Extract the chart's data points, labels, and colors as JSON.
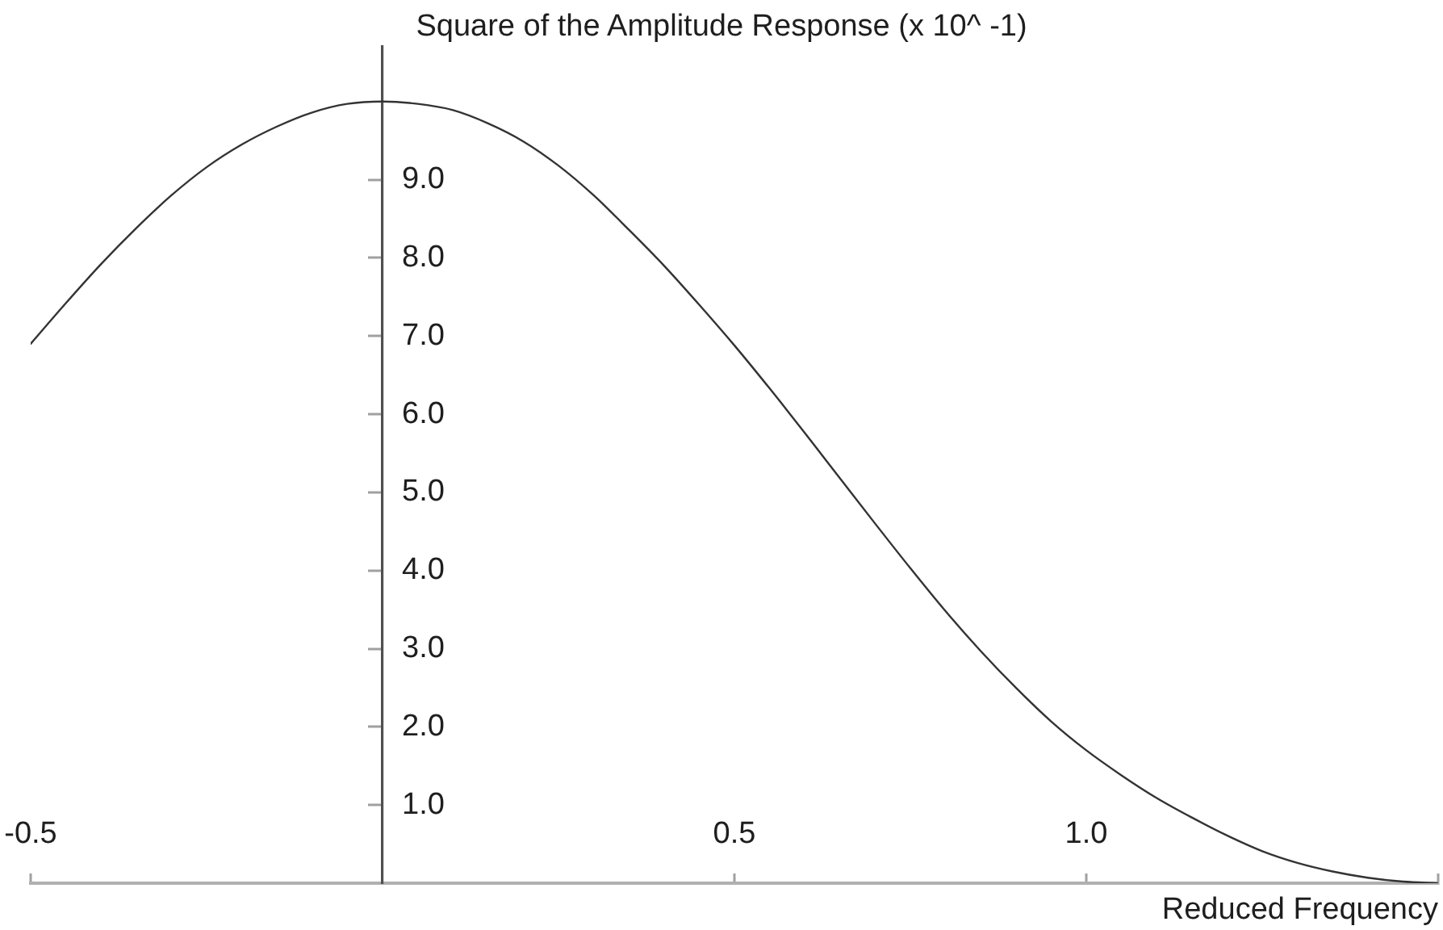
{
  "chart_data": {
    "type": "line",
    "ylabel": "Square of the Amplitude Response (x 10^ -1)",
    "xlabel": "Reduced Frequency",
    "x": [
      -0.5,
      -0.45,
      -0.4,
      -0.35,
      -0.3,
      -0.25,
      -0.2,
      -0.15,
      -0.1,
      -0.05,
      0,
      0.05,
      0.1,
      0.15,
      0.2,
      0.25,
      0.3,
      0.35,
      0.4,
      0.45,
      0.5,
      0.55,
      0.6,
      0.65,
      0.7,
      0.75,
      0.8,
      0.85,
      0.9,
      0.95,
      1,
      1.05,
      1.1,
      1.15,
      1.2,
      1.25,
      1.3,
      1.35,
      1.4,
      1.45,
      1.5
    ],
    "series": [
      {
        "color": "#333333",
        "values": [
          6.9,
          7.42,
          7.92,
          8.38,
          8.8,
          9.16,
          9.45,
          9.68,
          9.86,
          9.97,
          10,
          9.97,
          9.89,
          9.72,
          9.49,
          9.18,
          8.8,
          8.36,
          7.9,
          7.4,
          6.88,
          6.33,
          5.76,
          5.18,
          4.6,
          4.03,
          3.48,
          2.97,
          2.5,
          2.07,
          1.7,
          1.38,
          1.09,
          0.84,
          0.61,
          0.41,
          0.26,
          0.15,
          0.07,
          0.02,
          0
        ]
      }
    ],
    "xlim": [
      -0.5,
      1.5
    ],
    "xticks": [
      -0.5,
      0.5,
      {
        "value": 1,
        "label": "1.0"
      },
      {
        "value": 1.5,
        "label": null
      }
    ],
    "ylim": [
      0,
      10.7
    ],
    "yticks": [
      {
        "value": 1,
        "label": "1.0"
      },
      {
        "value": 2,
        "label": "2.0"
      },
      {
        "value": 3,
        "label": "3.0"
      },
      {
        "value": 4,
        "label": "4.0"
      },
      {
        "value": 5,
        "label": "5.0"
      },
      {
        "value": 6,
        "label": "6.0"
      },
      {
        "value": 7,
        "label": "7.0"
      },
      {
        "value": 8,
        "label": "8.0"
      },
      {
        "value": 9,
        "label": "9.0"
      }
    ],
    "marker": "none",
    "line_style": "solid"
  }
}
